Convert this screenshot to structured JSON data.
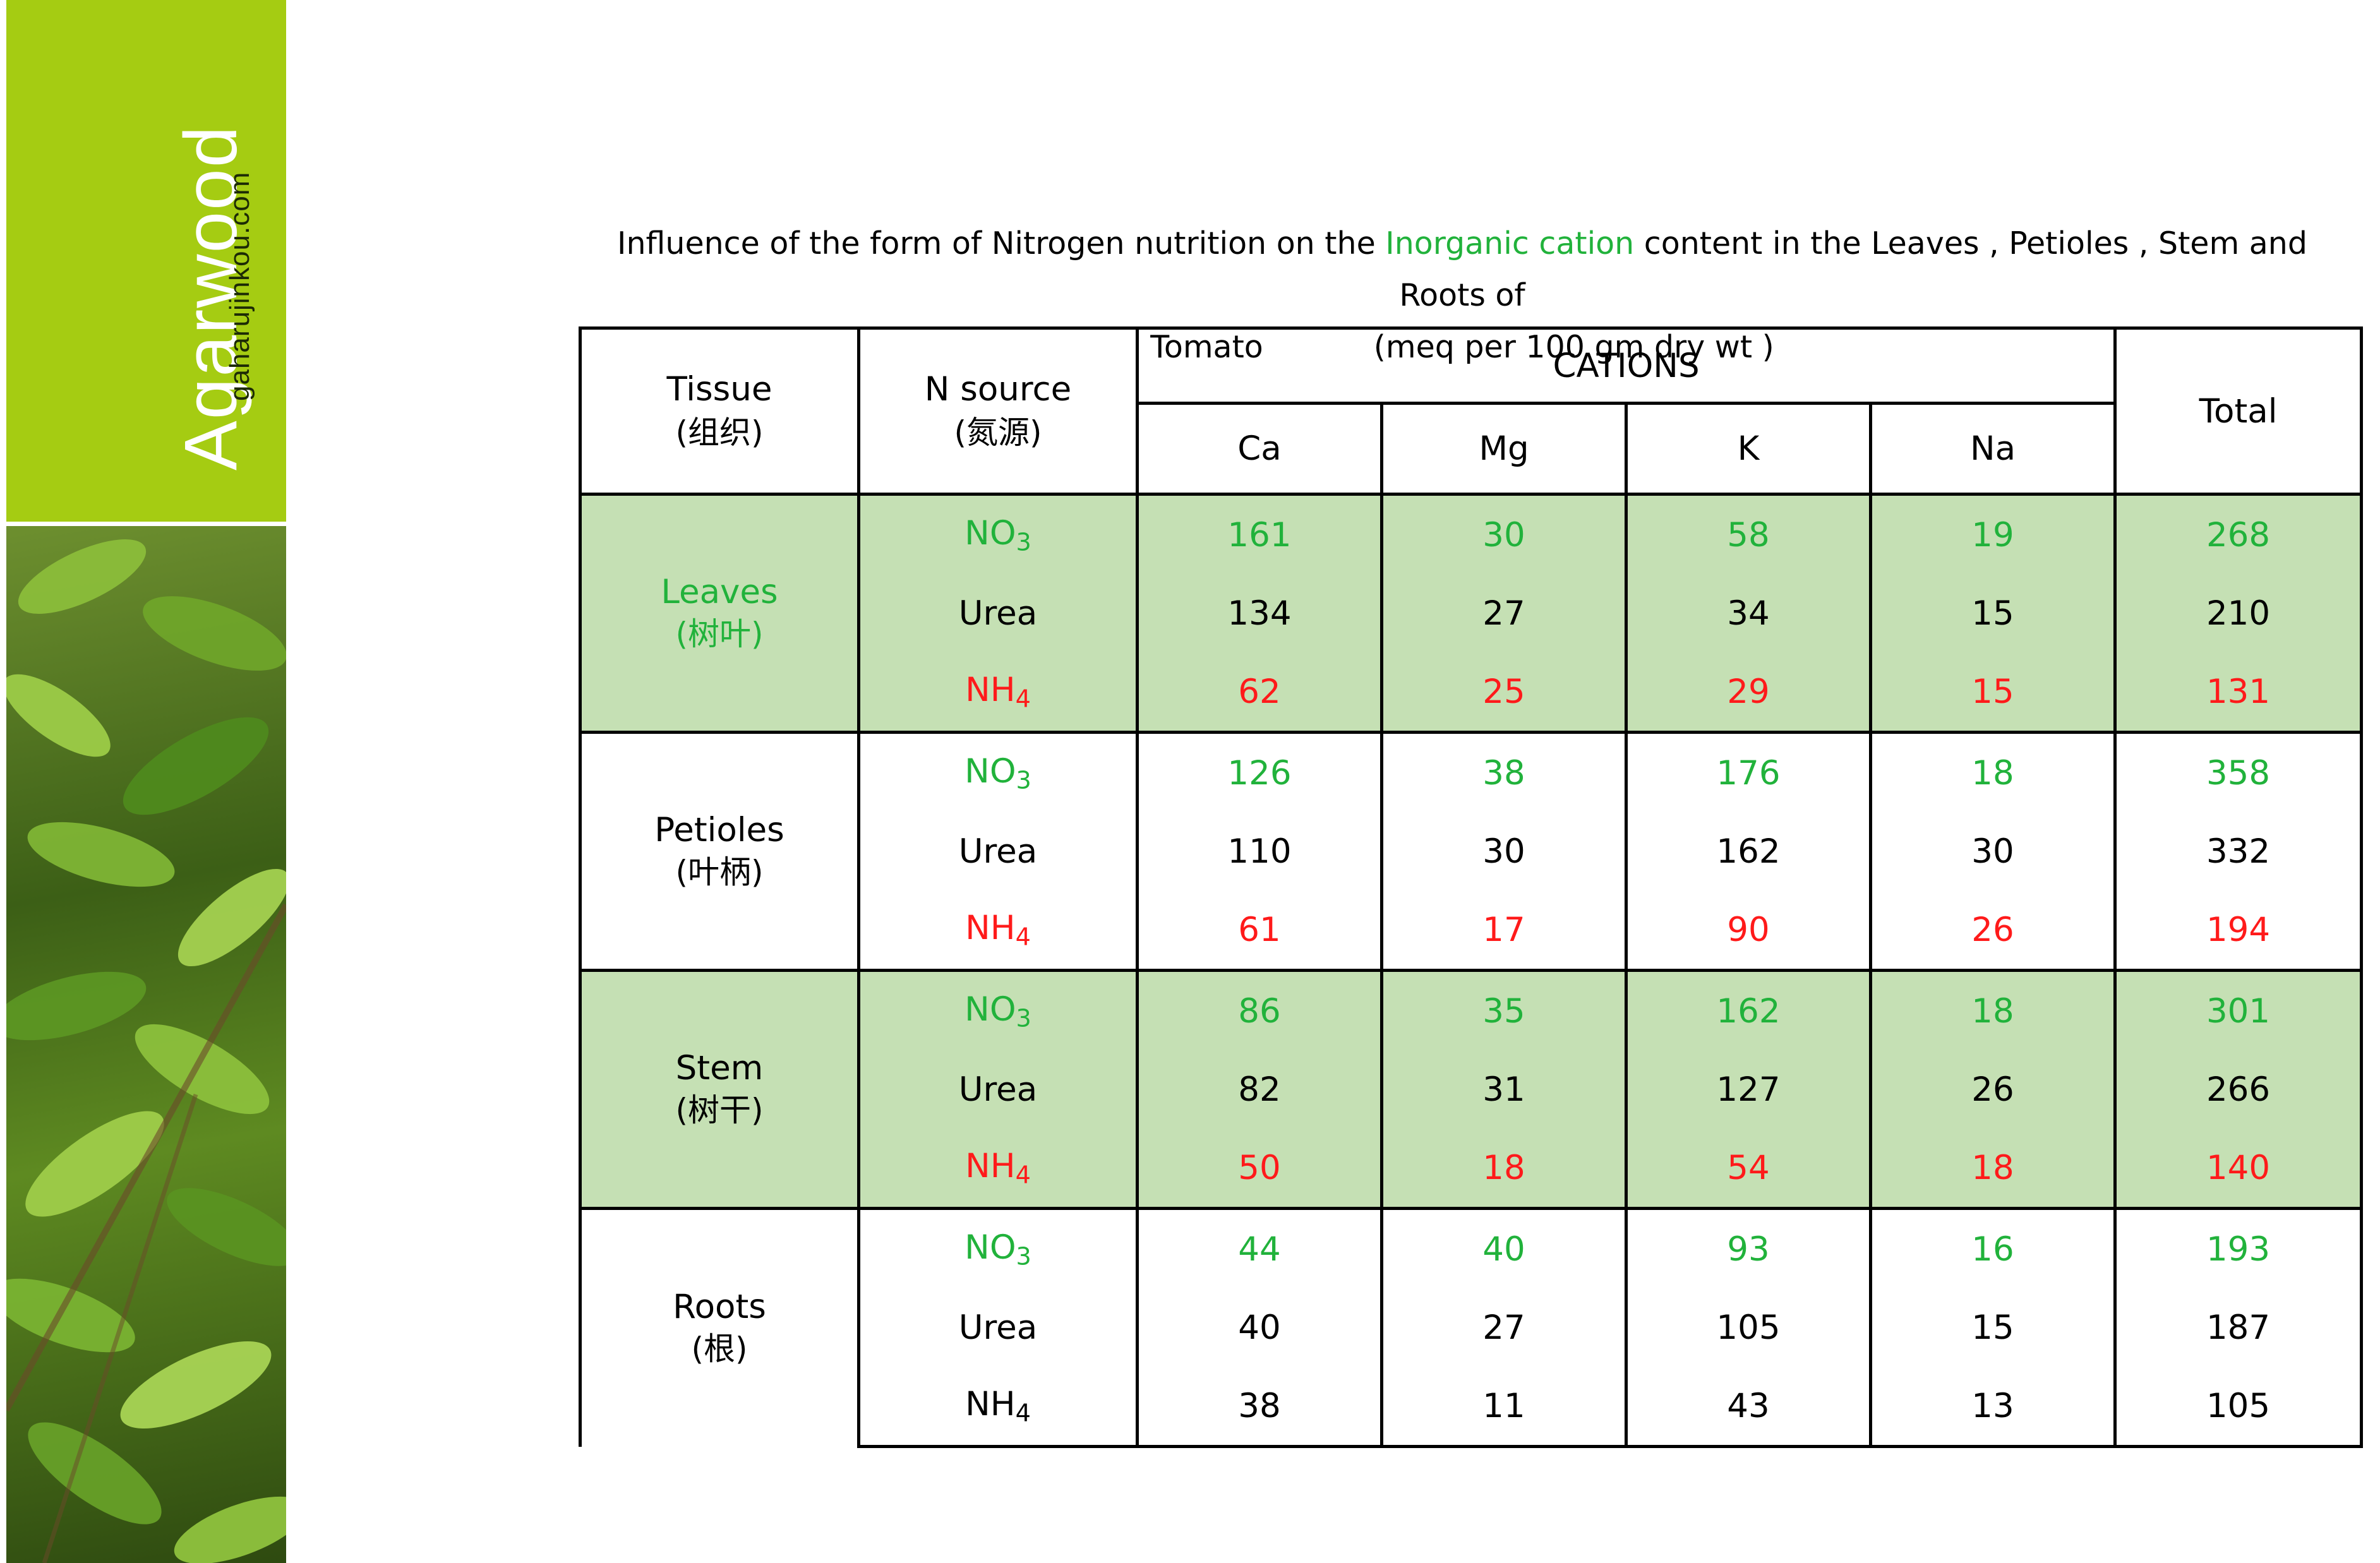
{
  "sidebar": {
    "brand": "Agarwood",
    "site": "gaharujinkou.com",
    "colors": {
      "green": "#a5cc12"
    }
  },
  "caption": {
    "before": "Influence of the form of Nitrogen nutrition on the ",
    "highlight": "Inorganic cation",
    "after": " content in the Leaves , Petioles , Stem and Roots of",
    "line2_a": "Tomato",
    "line2_b": "(meq per 100 gm dry wt )"
  },
  "table": {
    "headers": {
      "tissue": "Tissue",
      "tissue_cn": "(组织)",
      "nsource": "N source",
      "nsource_cn": "(氮源)",
      "cations": "CATIONS",
      "ca": "Ca",
      "mg": "Mg",
      "k": "K",
      "na": "Na",
      "total": "Total"
    },
    "sources": {
      "no3_base": "NO",
      "no3_sub": "3",
      "urea": "Urea",
      "nh4_base": "NH",
      "nh4_sub": "4"
    },
    "groups": [
      {
        "tissue": "Leaves",
        "tissue_cn": "(树叶)",
        "no3": [
          "161",
          "30",
          "58",
          "19",
          "268"
        ],
        "urea": [
          "134",
          "27",
          "34",
          "15",
          "210"
        ],
        "nh4": [
          "62",
          "25",
          "29",
          "15",
          "131"
        ]
      },
      {
        "tissue": "Petioles",
        "tissue_cn": "(叶柄)",
        "no3": [
          "126",
          "38",
          "176",
          "18",
          "358"
        ],
        "urea": [
          "110",
          "30",
          "162",
          "30",
          "332"
        ],
        "nh4": [
          "61",
          "17",
          "90",
          "26",
          "194"
        ]
      },
      {
        "tissue": "Stem",
        "tissue_cn": "(树干)",
        "no3": [
          "86",
          "35",
          "162",
          "18",
          "301"
        ],
        "urea": [
          "82",
          "31",
          "127",
          "26",
          "266"
        ],
        "nh4": [
          "50",
          "18",
          "54",
          "18",
          "140"
        ]
      },
      {
        "tissue": "Roots",
        "tissue_cn": "(根)",
        "no3": [
          "44",
          "40",
          "93",
          "16",
          "193"
        ],
        "urea": [
          "40",
          "27",
          "105",
          "15",
          "187"
        ],
        "nh4": [
          "38",
          "11",
          "43",
          "13",
          "105"
        ]
      }
    ],
    "colors": {
      "no3": "#21b23b",
      "nh4": "#ff1a1a",
      "shade": "#c5e0b4"
    }
  }
}
